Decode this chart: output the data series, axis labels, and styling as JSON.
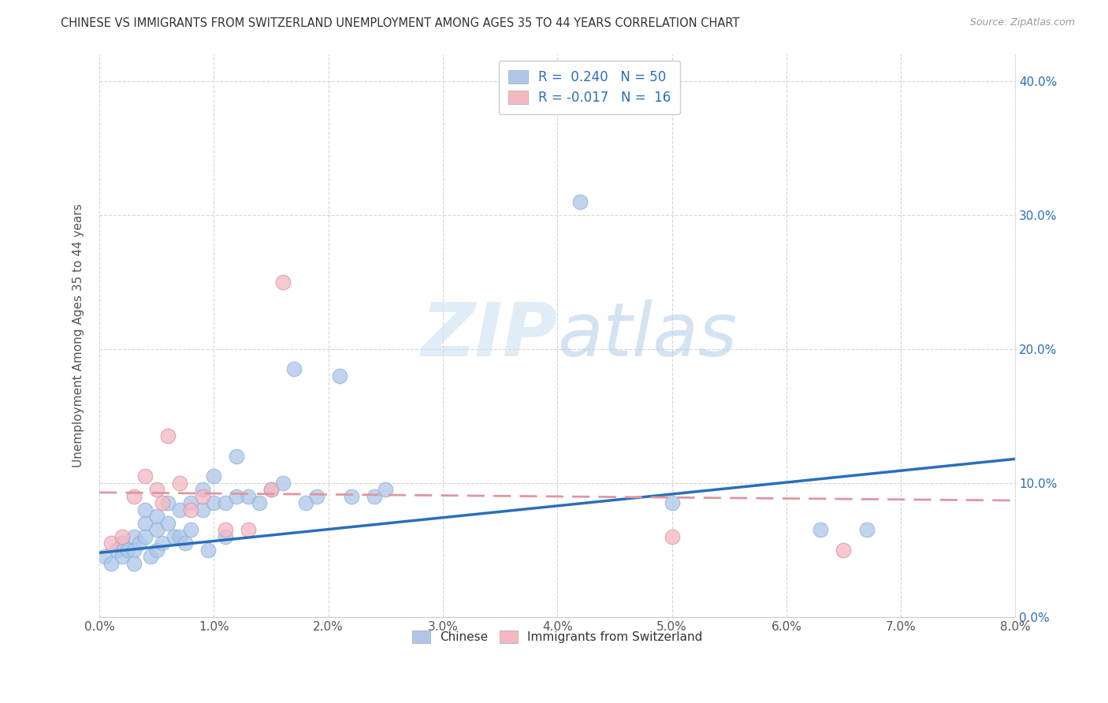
{
  "title": "CHINESE VS IMMIGRANTS FROM SWITZERLAND UNEMPLOYMENT AMONG AGES 35 TO 44 YEARS CORRELATION CHART",
  "source": "Source: ZipAtlas.com",
  "ylabel": "Unemployment Among Ages 35 to 44 years",
  "xlim": [
    0.0,
    0.08
  ],
  "ylim": [
    0.0,
    0.42
  ],
  "xticks": [
    0.0,
    0.01,
    0.02,
    0.03,
    0.04,
    0.05,
    0.06,
    0.07,
    0.08
  ],
  "yticks": [
    0.0,
    0.1,
    0.2,
    0.3,
    0.4
  ],
  "chinese_color": "#aec6e8",
  "swiss_color": "#f4b8c1",
  "chinese_line_color": "#2a6ebb",
  "swiss_line_color": "#e096a0",
  "R_chinese": 0.24,
  "N_chinese": 50,
  "R_swiss": -0.017,
  "N_swiss": 16,
  "watermark_zip": "ZIP",
  "watermark_atlas": "atlas",
  "chinese_x": [
    0.0005,
    0.001,
    0.0015,
    0.002,
    0.002,
    0.0025,
    0.003,
    0.003,
    0.003,
    0.0035,
    0.004,
    0.004,
    0.004,
    0.0045,
    0.005,
    0.005,
    0.005,
    0.0055,
    0.006,
    0.006,
    0.0065,
    0.007,
    0.007,
    0.0075,
    0.008,
    0.008,
    0.009,
    0.009,
    0.0095,
    0.01,
    0.01,
    0.011,
    0.011,
    0.012,
    0.012,
    0.013,
    0.014,
    0.015,
    0.016,
    0.017,
    0.018,
    0.019,
    0.021,
    0.022,
    0.024,
    0.025,
    0.042,
    0.05,
    0.063,
    0.067
  ],
  "chinese_y": [
    0.045,
    0.04,
    0.05,
    0.055,
    0.045,
    0.05,
    0.06,
    0.05,
    0.04,
    0.055,
    0.08,
    0.07,
    0.06,
    0.045,
    0.075,
    0.065,
    0.05,
    0.055,
    0.085,
    0.07,
    0.06,
    0.08,
    0.06,
    0.055,
    0.085,
    0.065,
    0.095,
    0.08,
    0.05,
    0.105,
    0.085,
    0.085,
    0.06,
    0.12,
    0.09,
    0.09,
    0.085,
    0.095,
    0.1,
    0.185,
    0.085,
    0.09,
    0.18,
    0.09,
    0.09,
    0.095,
    0.31,
    0.085,
    0.065,
    0.065
  ],
  "swiss_x": [
    0.001,
    0.002,
    0.003,
    0.004,
    0.005,
    0.0055,
    0.006,
    0.007,
    0.008,
    0.009,
    0.011,
    0.013,
    0.015,
    0.016,
    0.05,
    0.065
  ],
  "swiss_y": [
    0.055,
    0.06,
    0.09,
    0.105,
    0.095,
    0.085,
    0.135,
    0.1,
    0.08,
    0.09,
    0.065,
    0.065,
    0.095,
    0.25,
    0.06,
    0.05
  ],
  "chinese_line_x": [
    0.0,
    0.08
  ],
  "chinese_line_y": [
    0.048,
    0.118
  ],
  "swiss_line_x": [
    0.0,
    0.08
  ],
  "swiss_line_y": [
    0.093,
    0.087
  ]
}
